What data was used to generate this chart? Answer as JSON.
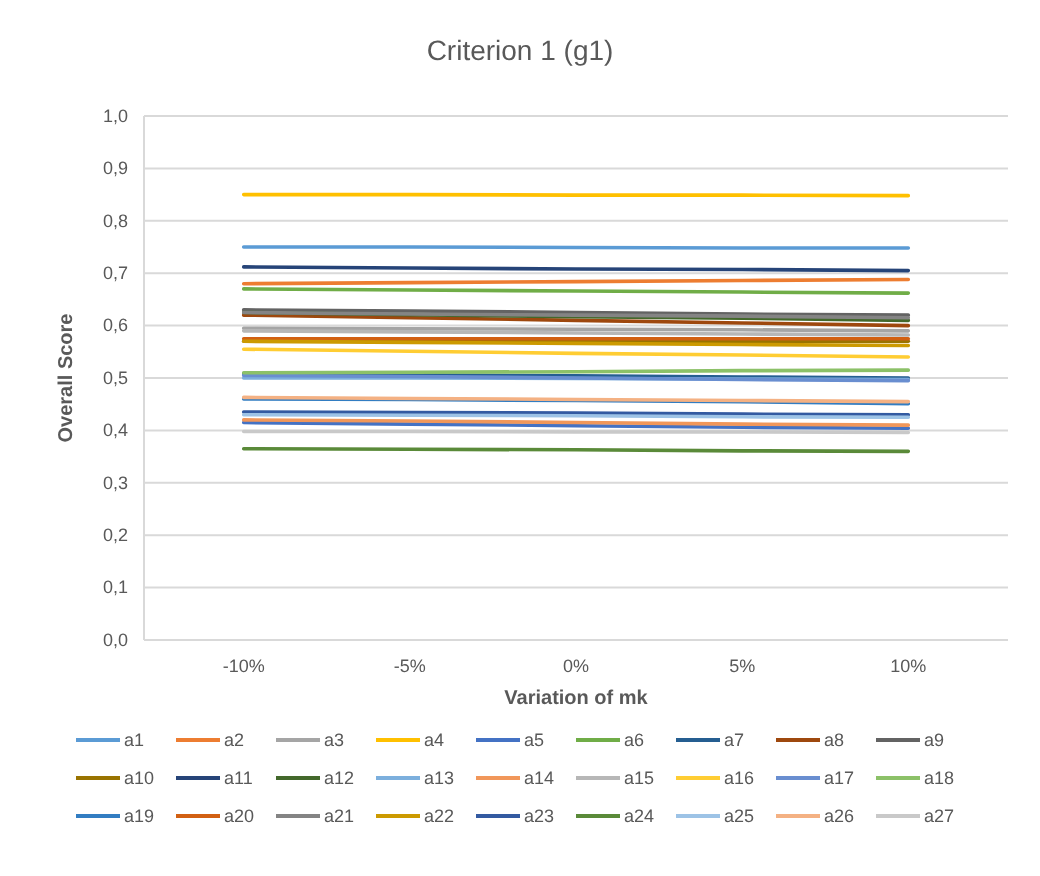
{
  "chart_data": {
    "type": "line",
    "title": "Criterion 1 (g1)",
    "xlabel": "Variation of mk",
    "ylabel": "Overall Score",
    "categories": [
      "-10%",
      "-5%",
      "0%",
      "5%",
      "10%"
    ],
    "ylim": [
      0,
      1
    ],
    "yticks": [
      {
        "value": 0,
        "label": "0,0"
      },
      {
        "value": 0.1,
        "label": "0,1"
      },
      {
        "value": 0.2,
        "label": "0,2"
      },
      {
        "value": 0.3,
        "label": "0,3"
      },
      {
        "value": 0.4,
        "label": "0,4"
      },
      {
        "value": 0.5,
        "label": "0,5"
      },
      {
        "value": 0.6,
        "label": "0,6"
      },
      {
        "value": 0.7,
        "label": "0,7"
      },
      {
        "value": 0.8,
        "label": "0,8"
      },
      {
        "value": 0.9,
        "label": "0,9"
      },
      {
        "value": 1,
        "label": "1,0"
      }
    ],
    "grid": "y",
    "legend": "bottom",
    "marker": "none",
    "line_style": "solid",
    "series": [
      {
        "name": "a1",
        "color": "#5b9bd5",
        "values": [
          0.75,
          0.75,
          0.749,
          0.748,
          0.748
        ]
      },
      {
        "name": "a2",
        "color": "#ed7d31",
        "values": [
          0.68,
          0.682,
          0.684,
          0.686,
          0.688
        ]
      },
      {
        "name": "a3",
        "color": "#a5a5a5",
        "values": [
          0.595,
          0.594,
          0.593,
          0.592,
          0.59
        ]
      },
      {
        "name": "a4",
        "color": "#ffc000",
        "values": [
          0.85,
          0.85,
          0.849,
          0.849,
          0.848
        ]
      },
      {
        "name": "a5",
        "color": "#4472c4",
        "values": [
          0.415,
          0.412,
          0.409,
          0.406,
          0.404
        ]
      },
      {
        "name": "a6",
        "color": "#70ad47",
        "values": [
          0.67,
          0.668,
          0.666,
          0.664,
          0.662
        ]
      },
      {
        "name": "a7",
        "color": "#255e91",
        "values": [
          0.508,
          0.506,
          0.504,
          0.502,
          0.5
        ]
      },
      {
        "name": "a8",
        "color": "#9e480e",
        "values": [
          0.62,
          0.615,
          0.61,
          0.605,
          0.6
        ]
      },
      {
        "name": "a9",
        "color": "#636363",
        "values": [
          0.63,
          0.628,
          0.625,
          0.622,
          0.62
        ]
      },
      {
        "name": "a10",
        "color": "#997300",
        "values": [
          0.57,
          0.57,
          0.57,
          0.57,
          0.57
        ]
      },
      {
        "name": "a11",
        "color": "#264478",
        "values": [
          0.712,
          0.71,
          0.708,
          0.707,
          0.705
        ]
      },
      {
        "name": "a12",
        "color": "#43682b",
        "values": [
          0.625,
          0.621,
          0.617,
          0.614,
          0.61
        ]
      },
      {
        "name": "a13",
        "color": "#7cafdd",
        "values": [
          0.5,
          0.5,
          0.499,
          0.498,
          0.497
        ]
      },
      {
        "name": "a14",
        "color": "#f1975a",
        "values": [
          0.42,
          0.418,
          0.415,
          0.412,
          0.41
        ]
      },
      {
        "name": "a15",
        "color": "#b7b7b7",
        "values": [
          0.59,
          0.588,
          0.586,
          0.584,
          0.582
        ]
      },
      {
        "name": "a16",
        "color": "#ffcd33",
        "values": [
          0.555,
          0.551,
          0.547,
          0.544,
          0.54
        ]
      },
      {
        "name": "a17",
        "color": "#698ed0",
        "values": [
          0.505,
          0.503,
          0.5,
          0.497,
          0.495
        ]
      },
      {
        "name": "a18",
        "color": "#8cc168",
        "values": [
          0.51,
          0.511,
          0.512,
          0.514,
          0.515
        ]
      },
      {
        "name": "a19",
        "color": "#327dc2",
        "values": [
          0.46,
          0.459,
          0.457,
          0.455,
          0.451
        ]
      },
      {
        "name": "a20",
        "color": "#d26012",
        "values": [
          0.575,
          0.575,
          0.575,
          0.575,
          0.575
        ]
      },
      {
        "name": "a21",
        "color": "#848484",
        "values": [
          0.625,
          0.622,
          0.62,
          0.618,
          0.615
        ]
      },
      {
        "name": "a22",
        "color": "#cc9a00",
        "values": [
          0.57,
          0.568,
          0.566,
          0.564,
          0.562
        ]
      },
      {
        "name": "a23",
        "color": "#335aa1",
        "values": [
          0.435,
          0.434,
          0.433,
          0.431,
          0.43
        ]
      },
      {
        "name": "a24",
        "color": "#5a8a39",
        "values": [
          0.365,
          0.364,
          0.363,
          0.361,
          0.36
        ]
      },
      {
        "name": "a25",
        "color": "#9dc3e6",
        "values": [
          0.43,
          0.429,
          0.428,
          0.426,
          0.425
        ]
      },
      {
        "name": "a26",
        "color": "#f4b183",
        "values": [
          0.463,
          0.461,
          0.459,
          0.457,
          0.455
        ]
      },
      {
        "name": "a27",
        "color": "#c9c9c9",
        "values": [
          0.398,
          0.398,
          0.397,
          0.397,
          0.396
        ]
      }
    ]
  }
}
